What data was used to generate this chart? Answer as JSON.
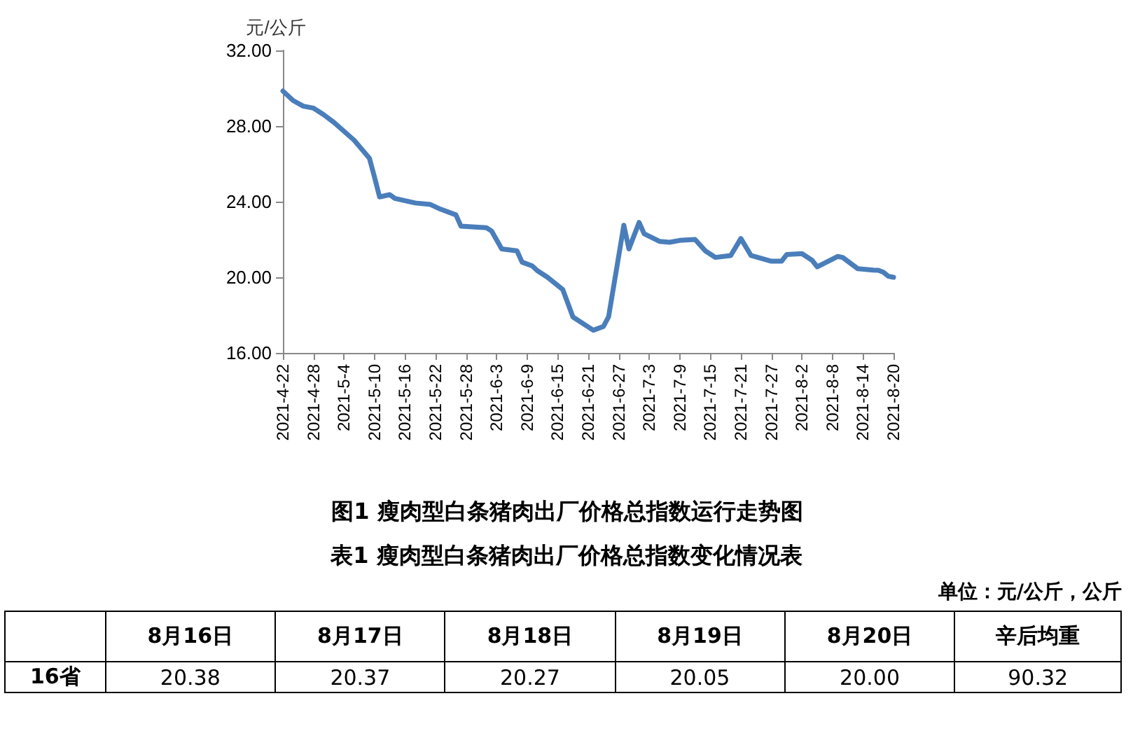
{
  "chart_data": [
    {
      "type": "line",
      "title": "图1 瘦肉型白条猪肉出厂价格总指数运行走势图",
      "ylabel": "元/公斤",
      "color": "#4a7ebb",
      "x": [
        "2021-04-22",
        "2021-04-24",
        "2021-04-26",
        "2021-04-28",
        "2021-04-30",
        "2021-05-02",
        "2021-05-06",
        "2021-05-09",
        "2021-05-10",
        "2021-05-11",
        "2021-05-13",
        "2021-05-14",
        "2021-05-18",
        "2021-05-21",
        "2021-05-23",
        "2021-05-26",
        "2021-05-27",
        "2021-06-01",
        "2021-06-02",
        "2021-06-04",
        "2021-06-07",
        "2021-06-08",
        "2021-06-10",
        "2021-06-11",
        "2021-06-13",
        "2021-06-16",
        "2021-06-18",
        "2021-06-22",
        "2021-06-24",
        "2021-06-25",
        "2021-06-28",
        "2021-06-29",
        "2021-07-01",
        "2021-07-02",
        "2021-07-05",
        "2021-07-07",
        "2021-07-09",
        "2021-07-12",
        "2021-07-14",
        "2021-07-16",
        "2021-07-19",
        "2021-07-21",
        "2021-07-23",
        "2021-07-27",
        "2021-07-29",
        "2021-07-30",
        "2021-08-02",
        "2021-08-04",
        "2021-08-05",
        "2021-08-09",
        "2021-08-10",
        "2021-08-13",
        "2021-08-16",
        "2021-08-17",
        "2021-08-18",
        "2021-08-19",
        "2021-08-20"
      ],
      "values": [
        29.85,
        29.35,
        29.05,
        28.95,
        28.6,
        28.2,
        27.25,
        26.3,
        25.3,
        24.25,
        24.37,
        24.17,
        23.93,
        23.85,
        23.6,
        23.3,
        22.7,
        22.62,
        22.45,
        21.5,
        21.4,
        20.8,
        20.6,
        20.35,
        20.0,
        19.35,
        17.9,
        17.2,
        17.4,
        17.9,
        22.75,
        21.5,
        22.9,
        22.3,
        21.9,
        21.85,
        21.95,
        22.0,
        21.4,
        21.05,
        21.15,
        22.05,
        21.15,
        20.85,
        20.85,
        21.2,
        21.25,
        20.9,
        20.55,
        21.1,
        21.05,
        20.45,
        20.38,
        20.37,
        20.27,
        20.05,
        20.0
      ],
      "xlim": [
        "2021-04-22",
        "2021-08-20"
      ],
      "xticks": [
        {
          "value": "2021-04-22",
          "label": "2021-4-22"
        },
        {
          "value": "2021-04-28",
          "label": "2021-4-28"
        },
        {
          "value": "2021-05-04",
          "label": "2021-5-4"
        },
        {
          "value": "2021-05-10",
          "label": "2021-5-10"
        },
        {
          "value": "2021-05-16",
          "label": "2021-5-16"
        },
        {
          "value": "2021-05-22",
          "label": "2021-5-22"
        },
        {
          "value": "2021-05-28",
          "label": "2021-5-28"
        },
        {
          "value": "2021-06-03",
          "label": "2021-6-3"
        },
        {
          "value": "2021-06-09",
          "label": "2021-6-9"
        },
        {
          "value": "2021-06-15",
          "label": "2021-6-15"
        },
        {
          "value": "2021-06-21",
          "label": "2021-6-21"
        },
        {
          "value": "2021-06-27",
          "label": "2021-6-27"
        },
        {
          "value": "2021-07-03",
          "label": "2021-7-3"
        },
        {
          "value": "2021-07-09",
          "label": "2021-7-9"
        },
        {
          "value": "2021-07-15",
          "label": "2021-7-15"
        },
        {
          "value": "2021-07-21",
          "label": "2021-7-21"
        },
        {
          "value": "2021-07-27",
          "label": "2021-7-27"
        },
        {
          "value": "2021-08-02",
          "label": "2021-8-2"
        },
        {
          "value": "2021-08-08",
          "label": "2021-8-8"
        },
        {
          "value": "2021-08-14",
          "label": "2021-8-14"
        },
        {
          "value": "2021-08-20",
          "label": "2021-8-20"
        }
      ],
      "ylim": [
        16,
        32
      ],
      "yticks": [
        {
          "value": 16,
          "label": "16.00"
        },
        {
          "value": 20,
          "label": "20.00"
        },
        {
          "value": 24,
          "label": "24.00"
        },
        {
          "value": 28,
          "label": "28.00"
        },
        {
          "value": 32,
          "label": "32.00"
        }
      ],
      "grid": false,
      "marker": "none",
      "line_style": "solid"
    },
    {
      "type": "other",
      "title": "表1 瘦肉型白条猪肉出厂价格总指数变化情况表",
      "annotations": [
        "单位：元/公斤，公斤"
      ],
      "categories": [
        "8月16日",
        "8月17日",
        "8月18日",
        "8月19日",
        "8月20日",
        "辛后均重"
      ],
      "series": [
        {
          "name": "16省",
          "values": [
            20.38,
            20.37,
            20.27,
            20.05,
            20.0,
            90.32
          ],
          "value_labels": [
            "20.38",
            "20.37",
            "20.27",
            "20.05",
            "20.00",
            "90.32"
          ]
        }
      ]
    }
  ]
}
